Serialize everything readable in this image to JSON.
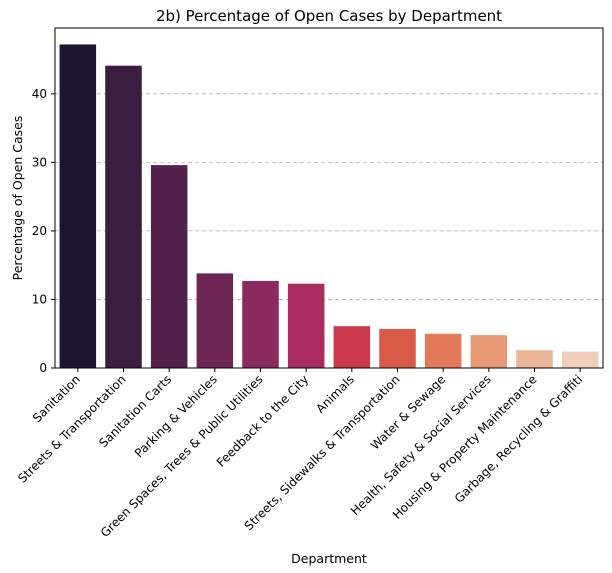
{
  "chart_data": {
    "type": "bar",
    "title": "2b) Percentage of Open Cases by Department",
    "xlabel": "Department",
    "ylabel": "Percentage of Open Cases",
    "ylim": [
      0,
      49.6
    ],
    "yticks": [
      0,
      10,
      20,
      30,
      40
    ],
    "grid": "y-dashed",
    "categories": [
      "Sanitation",
      "Streets & Transportation",
      "Sanitation Carts",
      "Parking & Vehicles",
      "Green Spaces, Trees & Public Utilities",
      "Feedback to the City",
      "Animals",
      "Streets, Sidewalks & Transportation",
      "Water & Sewage",
      "Health, Safety & Social Services",
      "Housing & Property Maintenance",
      "Garbage, Recycling & Graffiti"
    ],
    "values": [
      47.2,
      44.1,
      29.6,
      13.8,
      12.7,
      12.3,
      6.1,
      5.7,
      5.0,
      4.8,
      2.6,
      2.4
    ],
    "colors": [
      "#1f1530",
      "#3a1e40",
      "#53224c",
      "#6e2655",
      "#8b2a5c",
      "#aa2b5d",
      "#cb3a4c",
      "#d95a49",
      "#e27a59",
      "#e89a77",
      "#ebb597",
      "#f0cfb8"
    ]
  }
}
